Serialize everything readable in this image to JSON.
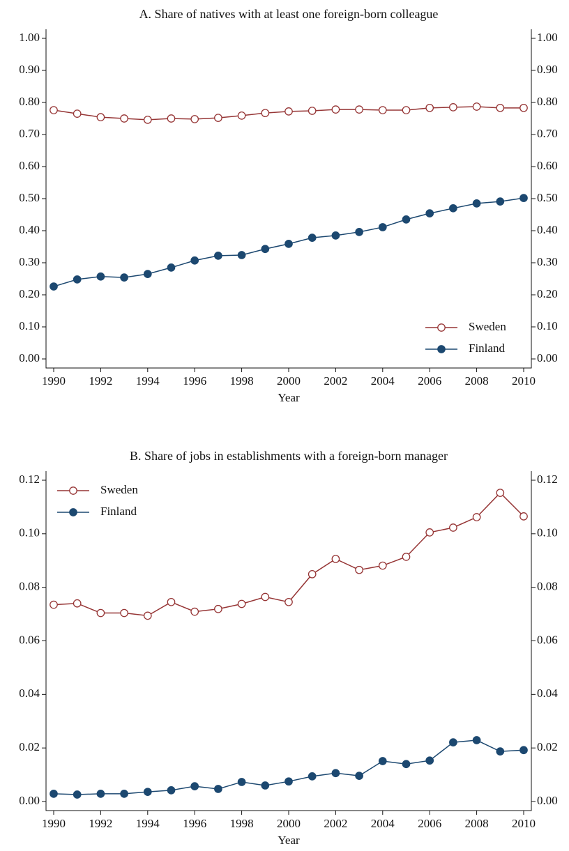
{
  "chart_data": [
    {
      "type": "line",
      "title": "A. Share of natives with at least one foreign-born colleague",
      "x_label": "Year",
      "x": [
        1990,
        1991,
        1992,
        1993,
        1994,
        1995,
        1996,
        1997,
        1998,
        1999,
        2000,
        2001,
        2002,
        2003,
        2004,
        2005,
        2006,
        2007,
        2008,
        2009,
        2010
      ],
      "xlim": [
        1990,
        2010
      ],
      "xticks": [
        1990,
        1992,
        1994,
        1996,
        1998,
        2000,
        2002,
        2004,
        2006,
        2008,
        2010
      ],
      "ylim": [
        0,
        1
      ],
      "yticks": [
        {
          "value": 0,
          "label": "0.00"
        },
        {
          "value": 0.1,
          "label": "0.10"
        },
        {
          "value": 0.2,
          "label": "0.20"
        },
        {
          "value": 0.3,
          "label": "0.30"
        },
        {
          "value": 0.4,
          "label": "0.40"
        },
        {
          "value": 0.5,
          "label": "0.50"
        },
        {
          "value": 0.6,
          "label": "0.60"
        },
        {
          "value": 0.7,
          "label": "0.70"
        },
        {
          "value": 0.8,
          "label": "0.80"
        },
        {
          "value": 0.9,
          "label": "0.90"
        },
        {
          "value": 1,
          "label": "1.00"
        }
      ],
      "y2lim": [
        0,
        1
      ],
      "y2ticks": [
        {
          "value": 0,
          "label": "0.00"
        },
        {
          "value": 0.1,
          "label": "0.10"
        },
        {
          "value": 0.2,
          "label": "0.20"
        },
        {
          "value": 0.3,
          "label": "0.30"
        },
        {
          "value": 0.4,
          "label": "0.40"
        },
        {
          "value": 0.5,
          "label": "0.50"
        },
        {
          "value": 0.6,
          "label": "0.60"
        },
        {
          "value": 0.7,
          "label": "0.70"
        },
        {
          "value": 0.8,
          "label": "0.80"
        },
        {
          "value": 0.9,
          "label": "0.90"
        },
        {
          "value": 1,
          "label": "1.00"
        }
      ],
      "legend": "lower right",
      "series": [
        {
          "name": "Sweden",
          "color": "#963535",
          "marker": "open-circle",
          "values": [
            0.776,
            0.765,
            0.754,
            0.75,
            0.746,
            0.75,
            0.748,
            0.752,
            0.759,
            0.767,
            0.772,
            0.774,
            0.778,
            0.778,
            0.776,
            0.776,
            0.783,
            0.785,
            0.787,
            0.783,
            0.783
          ]
        },
        {
          "name": "Finland",
          "color": "#1c4870",
          "marker": "filled-circle",
          "values": [
            0.226,
            0.248,
            0.257,
            0.254,
            0.265,
            0.285,
            0.307,
            0.322,
            0.324,
            0.343,
            0.359,
            0.378,
            0.385,
            0.396,
            0.411,
            0.435,
            0.454,
            0.47,
            0.485,
            0.491,
            0.502
          ]
        }
      ]
    },
    {
      "type": "line",
      "title": "B. Share of jobs in establishments with a foreign-born manager",
      "x_label": "Year",
      "x": [
        1990,
        1991,
        1992,
        1993,
        1994,
        1995,
        1996,
        1997,
        1998,
        1999,
        2000,
        2001,
        2002,
        2003,
        2004,
        2005,
        2006,
        2007,
        2008,
        2009,
        2010
      ],
      "xlim": [
        1990,
        2010
      ],
      "xticks": [
        1990,
        1992,
        1994,
        1996,
        1998,
        2000,
        2002,
        2004,
        2006,
        2008,
        2010
      ],
      "ylim": [
        0,
        0.12
      ],
      "yticks": [
        {
          "value": 0,
          "label": "0.00"
        },
        {
          "value": 0.02,
          "label": "0.02"
        },
        {
          "value": 0.04,
          "label": "0.04"
        },
        {
          "value": 0.06,
          "label": "0.06"
        },
        {
          "value": 0.08,
          "label": "0.08"
        },
        {
          "value": 0.1,
          "label": "0.10"
        },
        {
          "value": 0.12,
          "label": "0.12"
        }
      ],
      "y2lim": [
        0,
        0.12
      ],
      "y2ticks": [
        {
          "value": 0,
          "label": "0.00"
        },
        {
          "value": 0.02,
          "label": "0.02"
        },
        {
          "value": 0.04,
          "label": "0.04"
        },
        {
          "value": 0.06,
          "label": "0.06"
        },
        {
          "value": 0.08,
          "label": "0.08"
        },
        {
          "value": 0.1,
          "label": "0.10"
        },
        {
          "value": 0.12,
          "label": "0.12"
        }
      ],
      "legend": "upper left",
      "series": [
        {
          "name": "Sweden",
          "color": "#963535",
          "marker": "open-circle",
          "values": [
            0.0735,
            0.074,
            0.0704,
            0.0704,
            0.0694,
            0.0745,
            0.0709,
            0.0719,
            0.0738,
            0.0764,
            0.0745,
            0.0849,
            0.0906,
            0.0865,
            0.0881,
            0.0914,
            0.1005,
            0.1023,
            0.1062,
            0.1153,
            0.1065
          ]
        },
        {
          "name": "Finland",
          "color": "#1c4870",
          "marker": "filled-circle",
          "values": [
            0.0029,
            0.0026,
            0.0029,
            0.0029,
            0.0036,
            0.0042,
            0.0057,
            0.0047,
            0.0073,
            0.006,
            0.0075,
            0.0094,
            0.0106,
            0.0096,
            0.0151,
            0.014,
            0.0153,
            0.0221,
            0.0229,
            0.0187,
            0.0192
          ]
        }
      ]
    }
  ]
}
